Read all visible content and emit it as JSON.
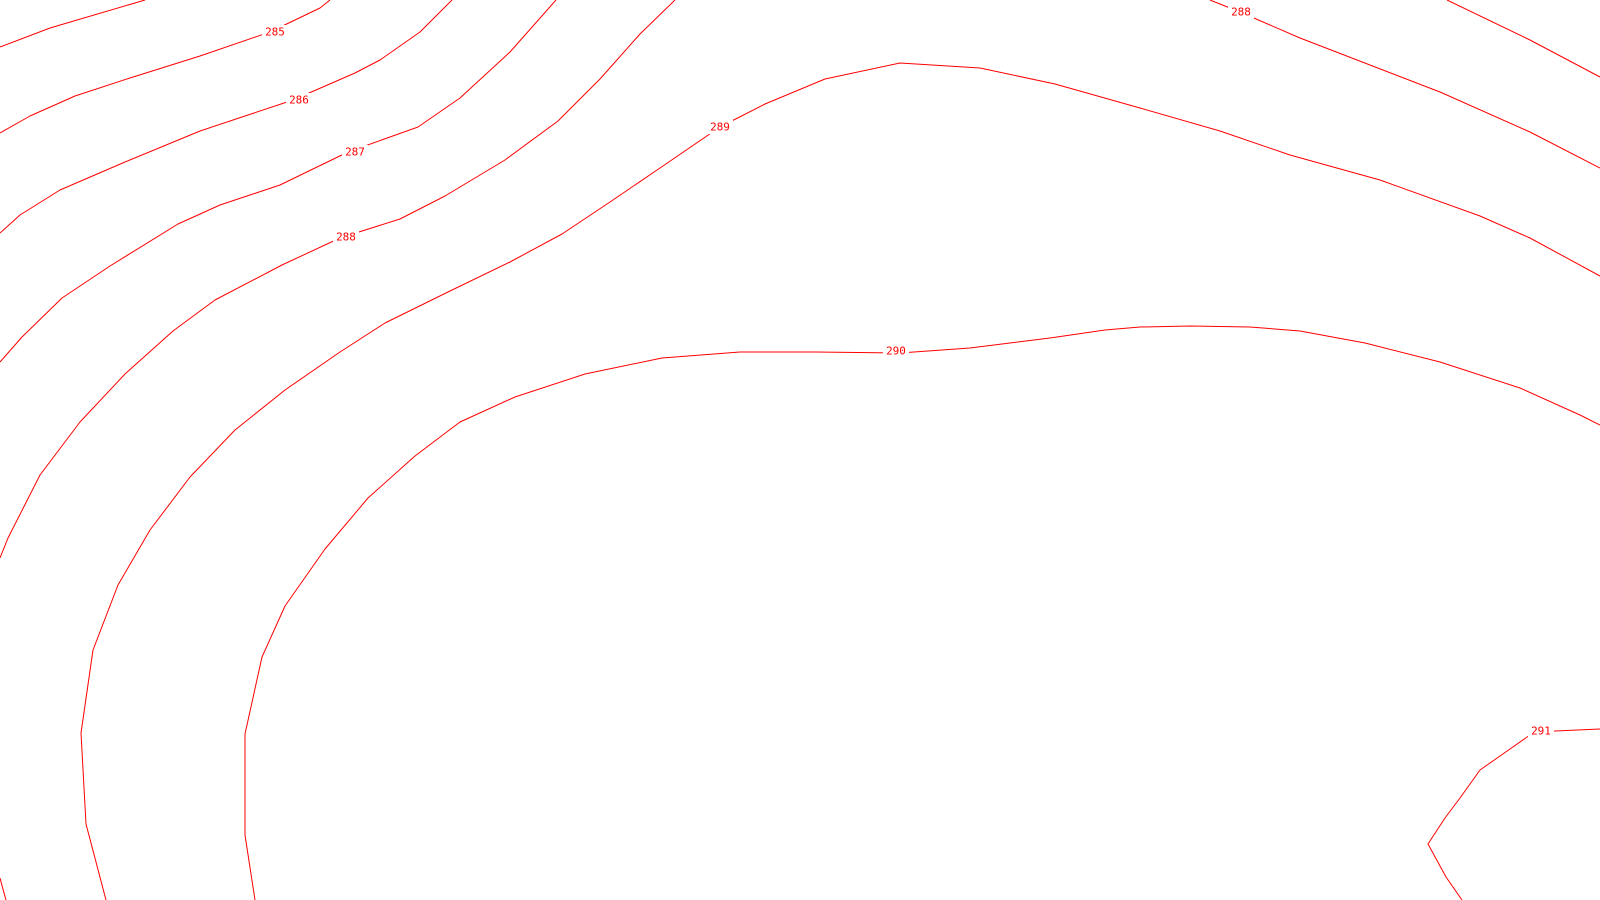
{
  "map": {
    "background_color": "#ffffff",
    "line_color": "#ff0000",
    "label_color": "#ff0000",
    "contours": [
      {
        "id": "c285",
        "label": "285",
        "elevation": 285
      },
      {
        "id": "c286",
        "label": "286",
        "elevation": 286
      },
      {
        "id": "c287",
        "label": "287",
        "elevation": 287
      },
      {
        "id": "c288",
        "label": "288",
        "elevation": 288
      },
      {
        "id": "c288b",
        "label": "288",
        "elevation": 288
      },
      {
        "id": "c289",
        "label": "289",
        "elevation": 289
      },
      {
        "id": "c290",
        "label": "290",
        "elevation": 290
      },
      {
        "id": "c291",
        "label": "291",
        "elevation": 291
      }
    ],
    "unlabeled_segments": [
      {
        "id": "u-top-right"
      },
      {
        "id": "u-bottom-left"
      }
    ]
  }
}
